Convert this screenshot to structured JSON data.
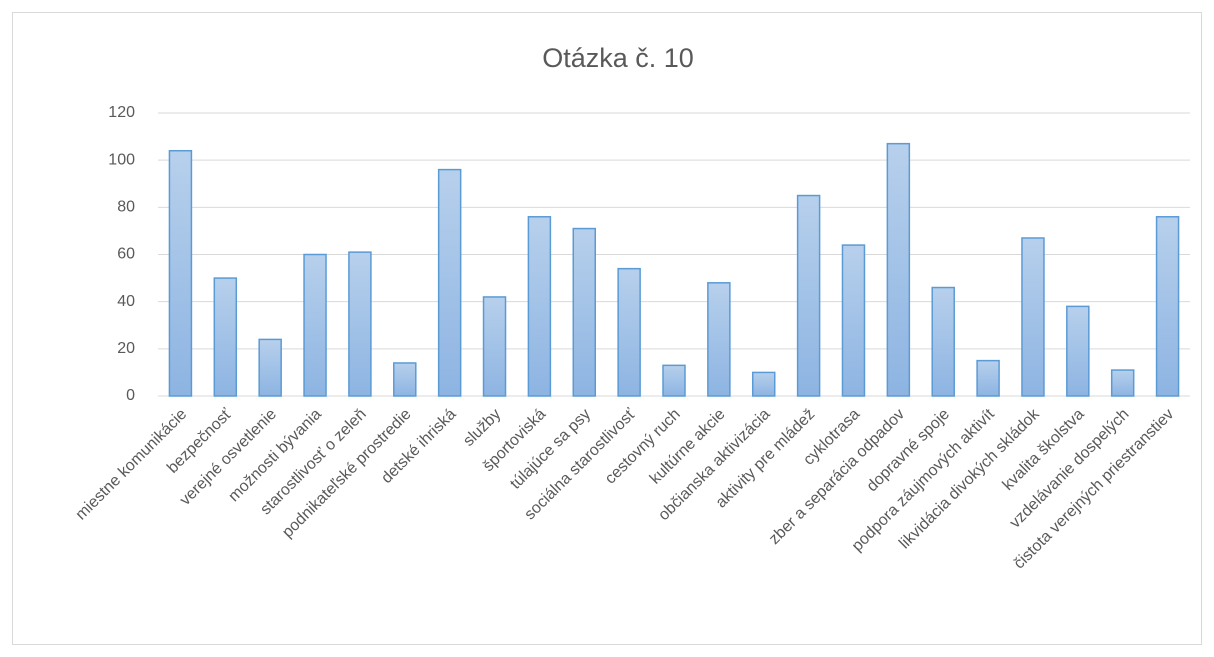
{
  "chart_data": {
    "type": "bar",
    "title": "Otázka č. 10",
    "categories": [
      "miestne komunikácie",
      "bezpečnosť",
      "verejné osvetlenie",
      "možnosti bývania",
      "starostlivosť o zeleň",
      "podnikateľské prostredie",
      "detské ihriská",
      "služby",
      "športoviská",
      "túlajúce sa psy",
      "sociálna starostlivosť",
      "cestovný ruch",
      "kultúrne akcie",
      "občianska aktivizácia",
      "aktivity pre mládež",
      "cyklotrasa",
      "zber a separácia odpadov",
      "dopravné spoje",
      "podpora záujmových aktivít",
      "likvidácia divokých skládok",
      "kvalita školstva",
      "vzdelávanie dospelých",
      "čistota verejných priestranstiev"
    ],
    "values": [
      104,
      50,
      24,
      60,
      61,
      14,
      96,
      42,
      76,
      71,
      54,
      13,
      48,
      10,
      85,
      64,
      107,
      46,
      15,
      67,
      38,
      11,
      76
    ],
    "color": "#5b9bd5",
    "ylim": [
      0,
      120
    ],
    "yticks": [
      0,
      20,
      40,
      60,
      80,
      100,
      120
    ],
    "grid": true
  }
}
